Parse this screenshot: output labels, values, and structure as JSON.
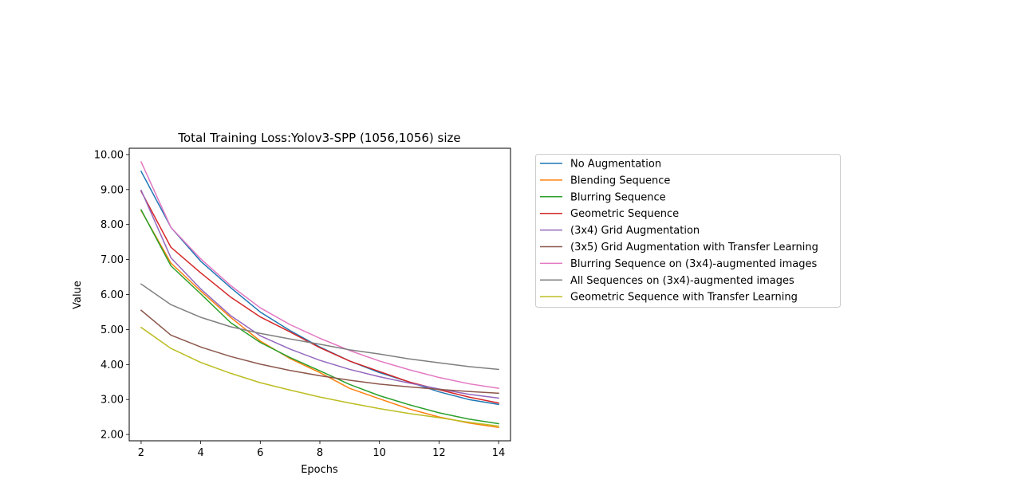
{
  "chart_data": {
    "type": "line",
    "title": "Total Training Loss:Yolov3-SPP (1056,1056) size",
    "xlabel": "Epochs",
    "ylabel": "Value",
    "xlim": [
      1.6,
      14.4
    ],
    "ylim": [
      1.82,
      10.18
    ],
    "xticks": [
      2,
      4,
      6,
      8,
      10,
      12,
      14
    ],
    "xtick_labels": [
      "2",
      "4",
      "6",
      "8",
      "10",
      "12",
      "14"
    ],
    "yticks": [
      2,
      3,
      4,
      5,
      6,
      7,
      8,
      9,
      10
    ],
    "ytick_labels": [
      "2.00",
      "3.00",
      "4.00",
      "5.00",
      "6.00",
      "7.00",
      "8.00",
      "9.00",
      "10.00"
    ],
    "grid": false,
    "legend_position": "outside-right",
    "x": [
      2,
      3,
      4,
      5,
      6,
      7,
      8,
      9,
      10,
      11,
      12,
      13,
      14
    ],
    "series": [
      {
        "name": "No Augmentation",
        "color": "#1f77b4",
        "values": [
          9.52,
          7.92,
          6.95,
          6.2,
          5.5,
          4.97,
          4.5,
          4.1,
          3.77,
          3.5,
          3.22,
          3.0,
          2.86
        ]
      },
      {
        "name": "Blending Sequence",
        "color": "#ff7f0e",
        "values": [
          8.4,
          6.9,
          6.1,
          5.35,
          4.67,
          4.17,
          3.77,
          3.32,
          3.02,
          2.73,
          2.5,
          2.33,
          2.2
        ]
      },
      {
        "name": "Blurring Sequence",
        "color": "#2ca02c",
        "values": [
          8.42,
          6.82,
          6.02,
          5.2,
          4.63,
          4.2,
          3.82,
          3.43,
          3.11,
          2.85,
          2.62,
          2.44,
          2.31
        ]
      },
      {
        "name": "Geometric Sequence",
        "color": "#d62728",
        "values": [
          8.95,
          7.35,
          6.62,
          5.93,
          5.36,
          4.93,
          4.48,
          4.1,
          3.8,
          3.5,
          3.28,
          3.07,
          2.9
        ]
      },
      {
        "name": "(3x4) Grid Augmentation",
        "color": "#9467bd",
        "values": [
          8.98,
          7.05,
          6.16,
          5.4,
          4.82,
          4.44,
          4.12,
          3.86,
          3.65,
          3.47,
          3.3,
          3.15,
          3.04
        ]
      },
      {
        "name": "(3x5) Grid Augmentation with Transfer Learning",
        "color": "#8c564b",
        "values": [
          5.55,
          4.84,
          4.5,
          4.23,
          4.01,
          3.83,
          3.68,
          3.55,
          3.44,
          3.36,
          3.29,
          3.23,
          3.18
        ]
      },
      {
        "name": "Blurring Sequence on (3x4)-augmented images",
        "color": "#e377c2",
        "values": [
          9.79,
          7.92,
          7.02,
          6.26,
          5.62,
          5.14,
          4.75,
          4.4,
          4.1,
          3.85,
          3.63,
          3.45,
          3.32
        ]
      },
      {
        "name": "All Sequences on (3x4)-augmented images",
        "color": "#7f7f7f",
        "values": [
          6.3,
          5.71,
          5.35,
          5.08,
          4.89,
          4.73,
          4.58,
          4.42,
          4.3,
          4.16,
          4.05,
          3.94,
          3.86
        ]
      },
      {
        "name": "Geometric Sequence with Transfer Learning",
        "color": "#bcbd22",
        "values": [
          5.06,
          4.46,
          4.06,
          3.75,
          3.48,
          3.27,
          3.07,
          2.9,
          2.74,
          2.6,
          2.48,
          2.35,
          2.24
        ]
      }
    ]
  }
}
